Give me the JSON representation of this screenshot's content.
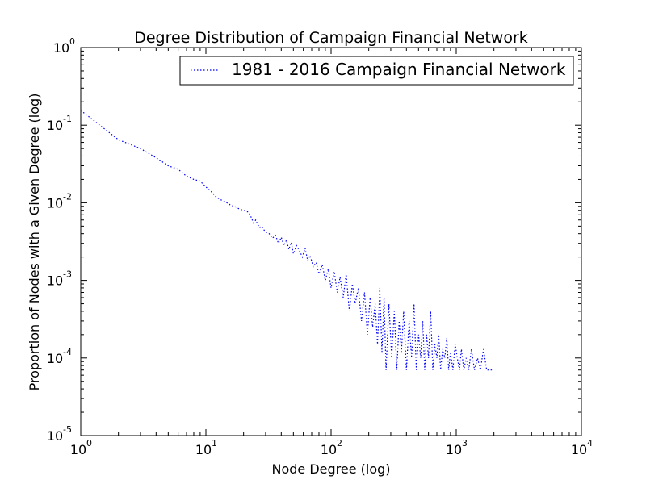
{
  "chart_data": {
    "type": "line",
    "title": "Degree Distribution of Campaign Financial Network",
    "xlabel": "Node Degree (log)",
    "ylabel": "Proportion of Nodes with a Given Degree (log)",
    "xscale": "log",
    "yscale": "log",
    "xlim": [
      1,
      10000
    ],
    "ylim": [
      1e-05,
      1
    ],
    "x_ticks": [
      {
        "base": "10",
        "exp": "0",
        "value": 1
      },
      {
        "base": "10",
        "exp": "1",
        "value": 10
      },
      {
        "base": "10",
        "exp": "2",
        "value": 100
      },
      {
        "base": "10",
        "exp": "3",
        "value": 1000
      },
      {
        "base": "10",
        "exp": "4",
        "value": 10000
      }
    ],
    "y_ticks": [
      {
        "base": "10",
        "exp": "0",
        "value": 1
      },
      {
        "base": "10",
        "exp": "-1",
        "value": 0.1
      },
      {
        "base": "10",
        "exp": "-2",
        "value": 0.01
      },
      {
        "base": "10",
        "exp": "-3",
        "value": 0.001
      },
      {
        "base": "10",
        "exp": "-4",
        "value": 0.0001
      },
      {
        "base": "10",
        "exp": "-5",
        "value": 1e-05
      }
    ],
    "grid": false,
    "legend_position": "top-right",
    "series": [
      {
        "name": "1981 - 2016 Campaign Financial Network",
        "color": "#0000ff",
        "line_style": "dotted",
        "x": [
          1,
          2,
          3,
          4,
          5,
          6,
          7,
          8,
          9,
          10,
          11,
          12,
          13,
          14,
          15,
          16,
          17,
          18,
          19,
          20,
          21,
          22,
          23,
          24,
          25,
          26,
          27,
          28,
          29,
          30,
          32,
          34,
          36,
          38,
          40,
          42,
          44,
          46,
          48,
          50,
          53,
          56,
          59,
          62,
          65,
          68,
          72,
          76,
          80,
          85,
          90,
          95,
          100,
          106,
          112,
          118,
          125,
          132,
          140,
          148,
          156,
          165,
          175,
          185,
          195,
          205,
          215,
          225,
          235,
          245,
          255,
          265,
          275,
          290,
          305,
          320,
          335,
          350,
          365,
          380,
          400,
          420,
          440,
          460,
          480,
          500,
          520,
          540,
          560,
          580,
          600,
          625,
          650,
          675,
          700,
          725,
          750,
          780,
          810,
          840,
          870,
          900,
          940,
          980,
          1020,
          1060,
          1100,
          1150,
          1200,
          1260,
          1320,
          1400,
          1480,
          1560,
          1650,
          1750,
          1850,
          2000
        ],
        "y": [
          0.155,
          0.065,
          0.05,
          0.038,
          0.03,
          0.027,
          0.022,
          0.02,
          0.019,
          0.016,
          0.014,
          0.012,
          0.011,
          0.0105,
          0.0098,
          0.0092,
          0.009,
          0.0085,
          0.0082,
          0.008,
          0.0078,
          0.0075,
          0.0065,
          0.0055,
          0.006,
          0.0052,
          0.0048,
          0.005,
          0.0045,
          0.0042,
          0.004,
          0.0035,
          0.0038,
          0.003,
          0.0036,
          0.0028,
          0.0033,
          0.0025,
          0.0031,
          0.0022,
          0.0028,
          0.0024,
          0.002,
          0.0026,
          0.0018,
          0.0021,
          0.0015,
          0.0017,
          0.0012,
          0.0016,
          0.001,
          0.0014,
          0.0008,
          0.0013,
          0.0007,
          0.0011,
          0.0006,
          0.0012,
          0.0004,
          0.0009,
          0.0005,
          0.0008,
          0.0003,
          0.0007,
          0.0002,
          0.0006,
          0.00025,
          0.0005,
          0.00015,
          0.0008,
          0.00012,
          0.0006,
          7e-05,
          0.0005,
          0.0001,
          0.0004,
          7e-05,
          0.0003,
          0.00012,
          0.0004,
          7e-05,
          0.0003,
          0.0001,
          0.0005,
          7e-05,
          0.0002,
          0.0001,
          0.0003,
          7e-05,
          0.0002,
          0.0001,
          0.0004,
          7e-05,
          0.00015,
          0.0001,
          0.0002,
          7e-05,
          0.00013,
          0.0001,
          0.00018,
          7e-05,
          0.00012,
          7e-05,
          0.00015,
          0.0001,
          7e-05,
          0.00013,
          7e-05,
          0.0001,
          7e-05,
          0.00013,
          7e-05,
          0.0001,
          7e-05,
          0.00013,
          7e-05,
          7e-05,
          7e-05
        ]
      }
    ]
  }
}
